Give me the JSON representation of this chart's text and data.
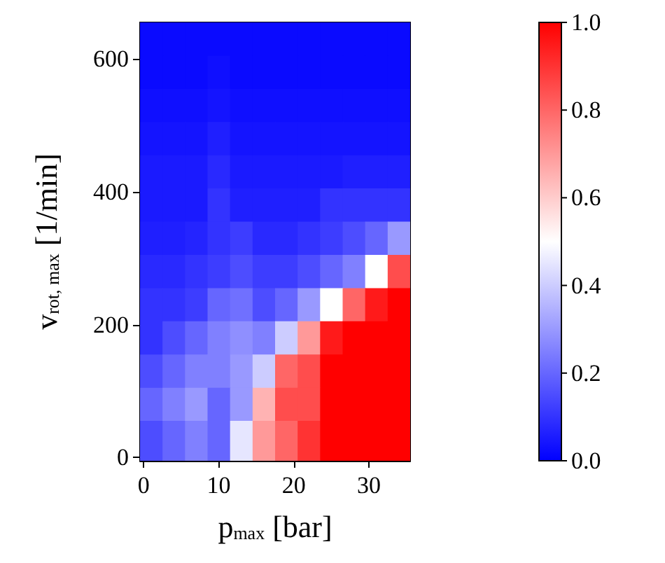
{
  "chart_data": {
    "type": "heatmap",
    "xlabel": "p$_{max}$ [bar]",
    "ylabel": "v$_{rot, max}$ [1/min]",
    "x": [
      1,
      4,
      7,
      10,
      13,
      16,
      19,
      22,
      25,
      28,
      31,
      34
    ],
    "y": [
      630,
      580,
      530,
      480,
      430,
      380,
      330,
      280,
      230,
      180,
      130,
      80,
      30
    ],
    "xlim": [
      -0.5,
      35.5
    ],
    "xticks": [
      0,
      10,
      20,
      30
    ],
    "ylim": [
      -5,
      655
    ],
    "yticks": [
      0,
      200,
      400,
      600
    ],
    "clim": [
      0,
      1
    ],
    "cticks": [
      {
        "value": 0,
        "label": "0.0"
      },
      {
        "value": 0.2,
        "label": "0.2"
      },
      {
        "value": 0.4,
        "label": "0.4"
      },
      {
        "value": 0.6,
        "label": "0.6"
      },
      {
        "value": 0.8,
        "label": "0.8"
      },
      {
        "value": 1,
        "label": "1.0"
      }
    ],
    "cells": [
      [
        0.02,
        0.02,
        0.02,
        0.02,
        0.02,
        0.02,
        0.02,
        0.02,
        0.02,
        0.02,
        0.02,
        0.02
      ],
      [
        0.02,
        0.02,
        0.02,
        0.03,
        0.02,
        0.02,
        0.02,
        0.02,
        0.02,
        0.02,
        0.02,
        0.02
      ],
      [
        0.03,
        0.03,
        0.03,
        0.04,
        0.03,
        0.03,
        0.03,
        0.03,
        0.03,
        0.03,
        0.03,
        0.03
      ],
      [
        0.04,
        0.04,
        0.04,
        0.06,
        0.04,
        0.04,
        0.04,
        0.04,
        0.04,
        0.04,
        0.04,
        0.04
      ],
      [
        0.05,
        0.05,
        0.05,
        0.08,
        0.05,
        0.05,
        0.05,
        0.05,
        0.05,
        0.06,
        0.06,
        0.06
      ],
      [
        0.05,
        0.05,
        0.05,
        0.1,
        0.06,
        0.06,
        0.06,
        0.06,
        0.1,
        0.1,
        0.1,
        0.1
      ],
      [
        0.06,
        0.06,
        0.07,
        0.1,
        0.12,
        0.08,
        0.08,
        0.1,
        0.12,
        0.15,
        0.2,
        0.3
      ],
      [
        0.08,
        0.08,
        0.1,
        0.12,
        0.15,
        0.12,
        0.12,
        0.15,
        0.2,
        0.25,
        0.5,
        0.85
      ],
      [
        0.1,
        0.1,
        0.12,
        0.2,
        0.22,
        0.15,
        0.2,
        0.3,
        0.5,
        0.8,
        0.95,
        1
      ],
      [
        0.1,
        0.15,
        0.2,
        0.25,
        0.28,
        0.25,
        0.4,
        0.7,
        0.95,
        1,
        1,
        1
      ],
      [
        0.15,
        0.2,
        0.25,
        0.25,
        0.3,
        0.4,
        0.8,
        0.85,
        1,
        1,
        1,
        1
      ],
      [
        0.2,
        0.25,
        0.3,
        0.2,
        0.3,
        0.65,
        0.85,
        0.85,
        1,
        1,
        1,
        1
      ],
      [
        0.15,
        0.2,
        0.25,
        0.2,
        0.45,
        0.7,
        0.8,
        0.9,
        1,
        1,
        1,
        1
      ]
    ]
  }
}
